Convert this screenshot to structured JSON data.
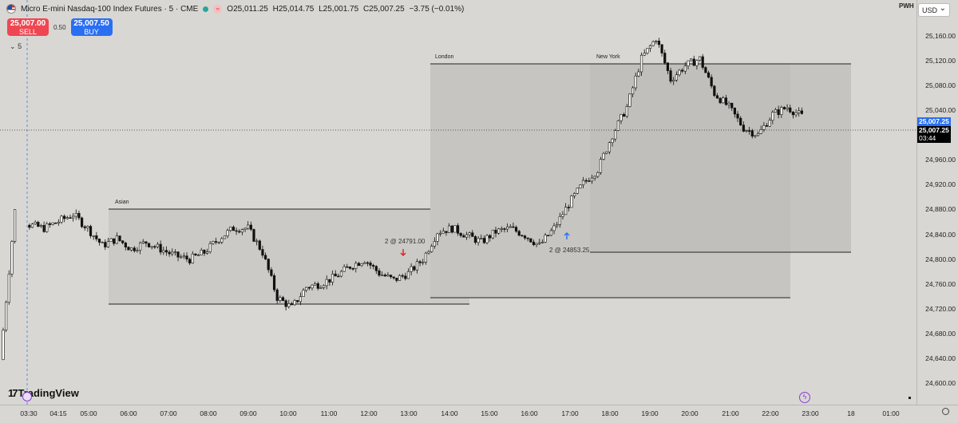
{
  "header": {
    "symbol_title": "Micro E-mini Nasdaq-100 Index Futures · 5 · CME",
    "ohlc": {
      "open": "O25,011.25",
      "high": "H25,014.75",
      "low": "L25,001.75",
      "close": "C25,007.25",
      "change": "−3.75 (−0.01%)"
    }
  },
  "trade": {
    "sell_price": "25,007.00",
    "sell_label": "SELL",
    "spread": "0.50",
    "buy_price": "25,007.50",
    "buy_label": "BUY"
  },
  "interval_toggle": "5",
  "price_axis": {
    "marker": "PWH",
    "currency": "USD",
    "labels": [
      "25,160.00",
      "25,120.00",
      "25,080.00",
      "25,040.00",
      "24,960.00",
      "24,920.00",
      "24,880.00",
      "24,840.00",
      "24,800.00",
      "24,760.00",
      "24,720.00",
      "24,680.00",
      "24,640.00",
      "24,600.00"
    ],
    "last_price_blue": "25,007.25",
    "last_price": "25,007.25",
    "countdown": "03:44"
  },
  "time_axis": {
    "labels": [
      "03:30",
      "04:15",
      "05:00",
      "06:00",
      "07:00",
      "08:00",
      "09:00",
      "10:00",
      "11:00",
      "12:00",
      "13:00",
      "14:00",
      "15:00",
      "16:00",
      "17:00",
      "18:00",
      "19:00",
      "20:00",
      "21:00",
      "22:00",
      "23:00",
      "18",
      "01:00"
    ]
  },
  "sessions": {
    "asian": "Asian",
    "london": "London",
    "new_york": "New York"
  },
  "annotations": {
    "sell_fill": "2 @ 24791.00",
    "buy_fill": "2 @ 24853.25"
  },
  "branding": "TradingView",
  "colors": {
    "sell": "#ef4752",
    "buy": "#2a6ff2",
    "background": "#d8d7d3"
  },
  "chart_data": {
    "type": "candlestick",
    "y_range": [
      24590,
      25175
    ],
    "closes_sampled": [
      24655,
      24870,
      24850,
      24845,
      24855,
      24865,
      24845,
      24820,
      24830,
      24815,
      24825,
      24815,
      24805,
      24800,
      24810,
      24830,
      24845,
      24845,
      24810,
      24745,
      24730,
      24760,
      24765,
      24775,
      24790,
      24800,
      24780,
      24770,
      24780,
      24800,
      24840,
      24845,
      24835,
      24825,
      24840,
      24845,
      24835,
      24820,
      24845,
      24880,
      24910,
      24930,
      24980,
      25020,
      25090,
      25120,
      25060,
      25080,
      25090,
      25040,
      25020,
      24990,
      24980,
      25010,
      25020,
      25007
    ]
  }
}
